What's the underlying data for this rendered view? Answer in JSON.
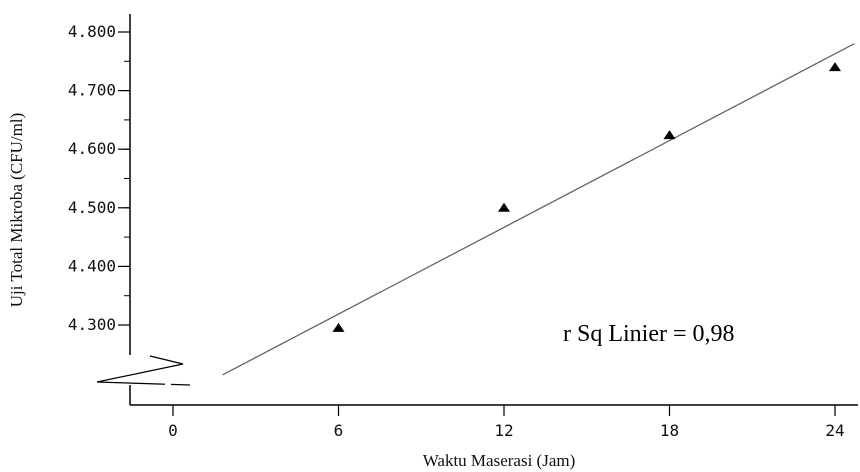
{
  "chart_data": {
    "type": "scatter",
    "xlabel": "Waktu Maserasi (Jam)",
    "ylabel": "Uji Total Mikroba (CFU/ml)",
    "x_ticks": [
      "0",
      "6",
      "12",
      "18",
      "24"
    ],
    "x_tick_values": [
      0,
      6,
      12,
      18,
      24
    ],
    "y_ticks": [
      "4.300",
      "4.400",
      "4.500",
      "4.600",
      "4.700",
      "4.800"
    ],
    "y_tick_values": [
      4.3,
      4.4,
      4.5,
      4.6,
      4.7,
      4.8
    ],
    "xlim": [
      -1,
      24.3
    ],
    "ylim": [
      4.27,
      4.83
    ],
    "axis_break": "y",
    "points": [
      {
        "x": 6,
        "y": 4.295
      },
      {
        "x": 12,
        "y": 4.5
      },
      {
        "x": 18,
        "y": 4.624
      },
      {
        "x": 24,
        "y": 4.74
      }
    ],
    "fit_line": {
      "x": [
        1.8,
        24.7
      ],
      "y": [
        4.215,
        4.78
      ]
    },
    "annotation": "r Sq Linier = 0,98",
    "marker": "triangle",
    "grid": false,
    "legend": "none",
    "colors": {
      "marker": "#000000",
      "line": "#666666",
      "axis": "#000000"
    }
  }
}
